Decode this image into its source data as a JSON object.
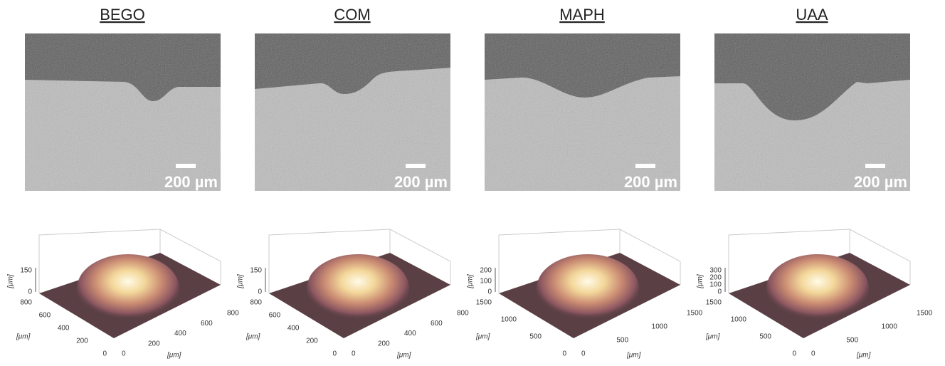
{
  "panels": [
    {
      "title": "BEGO",
      "scale_bar": "200 µm",
      "plot": {
        "z_label": "[μm]",
        "z_ticks": [
          0,
          150
        ],
        "y_label": "[μm]",
        "y_ticks": [
          0,
          200,
          400,
          600,
          800
        ],
        "x_label": "[μm]",
        "x_ticks": [
          0,
          200,
          400,
          600,
          800
        ]
      }
    },
    {
      "title": "COM",
      "scale_bar": "200 µm",
      "plot": {
        "z_label": "[μm]",
        "z_ticks": [
          0,
          150
        ],
        "y_label": "[μm]",
        "y_ticks": [
          0,
          200,
          400,
          600,
          800
        ],
        "x_label": "[μm]",
        "x_ticks": [
          0,
          200,
          400,
          600,
          800
        ]
      }
    },
    {
      "title": "MAPH",
      "scale_bar": "200 µm",
      "plot": {
        "z_label": "[μm]",
        "z_ticks": [
          0,
          100,
          200
        ],
        "y_label": "[μm]",
        "y_ticks": [
          0,
          500,
          1000,
          1500
        ],
        "x_label": "[μm]",
        "x_ticks": [
          0,
          500,
          1000,
          1500
        ]
      }
    },
    {
      "title": "UAA",
      "scale_bar": "200 µm",
      "plot": {
        "z_label": "[μm]",
        "z_ticks": [
          0,
          100,
          200,
          300
        ],
        "y_label": "[μm]",
        "y_ticks": [
          0,
          500,
          1000,
          1500
        ],
        "x_label": "[μm]",
        "x_ticks": [
          0,
          500,
          1000,
          1500
        ]
      }
    }
  ]
}
